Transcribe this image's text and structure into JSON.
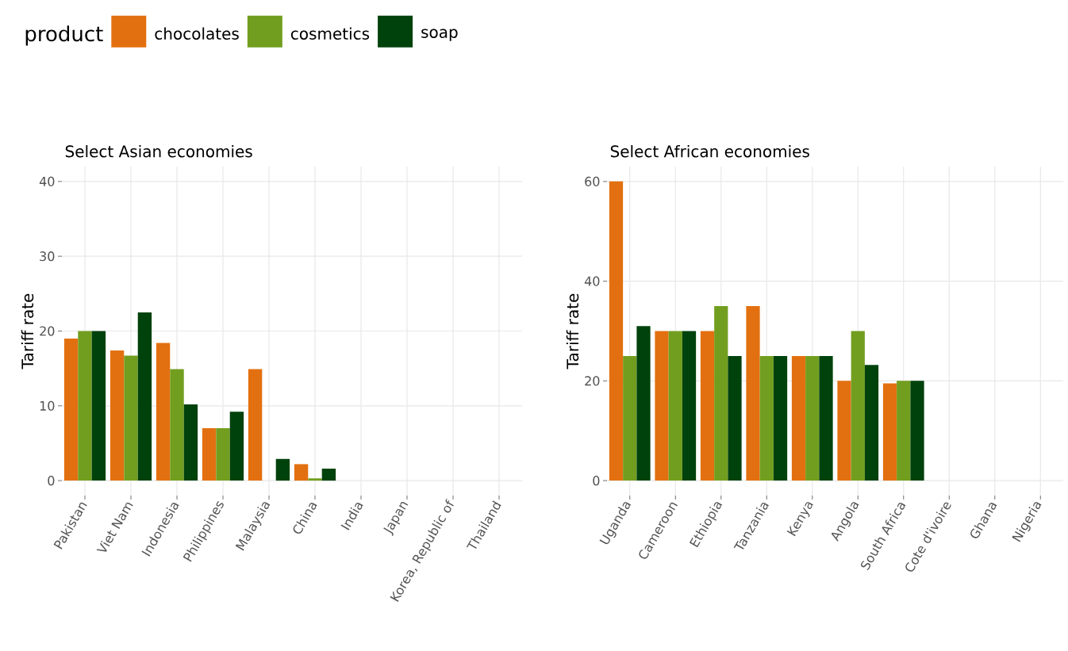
{
  "chart_data": [
    {
      "type": "bar",
      "title": "Select Asian economies",
      "ylabel": "Tariff rate",
      "legend_title": "product",
      "legend": "top left",
      "grid": true,
      "categories": [
        "Pakistan",
        "Viet Nam",
        "Indonesia",
        "Philippines",
        "Malaysia",
        "China",
        "India",
        "Japan",
        "Korea, Republic of",
        "Thailand"
      ],
      "ylim": [
        -2,
        42
      ],
      "yticks": [
        0,
        10,
        20,
        30,
        40
      ],
      "series": [
        {
          "name": "chocolates",
          "color": "#e37010",
          "values": [
            19,
            17.4,
            18.4,
            7,
            14.9,
            2.2,
            null,
            null,
            null,
            null
          ]
        },
        {
          "name": "cosmetics",
          "color": "#729e1f",
          "values": [
            20,
            16.7,
            14.9,
            7,
            null,
            0.3,
            null,
            null,
            null,
            null
          ]
        },
        {
          "name": "soap",
          "color": "#00420c",
          "values": [
            20,
            22.5,
            10.2,
            9.2,
            2.9,
            1.6,
            null,
            null,
            null,
            null
          ]
        }
      ]
    },
    {
      "type": "bar",
      "title": "Select African economies",
      "ylabel": "Tariff rate",
      "grid": true,
      "categories": [
        "Uganda",
        "Cameroon",
        "Ethiopia",
        "Tanzania",
        "Kenya",
        "Angola",
        "South Africa",
        "Cote d'ivoire",
        "Ghana",
        "Nigeria"
      ],
      "ylim": [
        -3,
        63
      ],
      "yticks": [
        0,
        20,
        40,
        60
      ],
      "series": [
        {
          "color": "#e37010",
          "values": [
            60,
            30,
            30,
            35,
            25,
            20,
            19.5,
            null,
            null,
            null
          ]
        },
        {
          "color": "#729e1f",
          "values": [
            25,
            30,
            35,
            25,
            25,
            30,
            20,
            null,
            null,
            null
          ]
        },
        {
          "color": "#00420c",
          "values": [
            31,
            30,
            25,
            25,
            25,
            23.2,
            20,
            null,
            null,
            null
          ]
        }
      ]
    }
  ]
}
